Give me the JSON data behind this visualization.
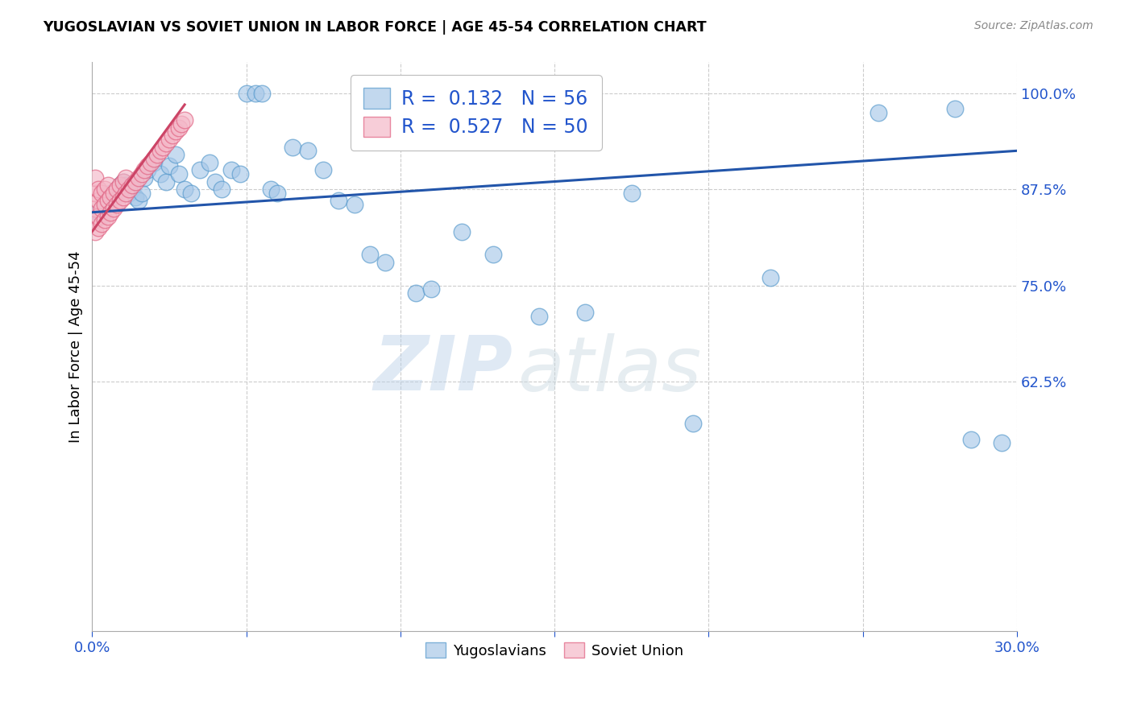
{
  "title": "YUGOSLAVIAN VS SOVIET UNION IN LABOR FORCE | AGE 45-54 CORRELATION CHART",
  "source": "Source: ZipAtlas.com",
  "ylabel": "In Labor Force | Age 45-54",
  "xlim": [
    0.0,
    0.3
  ],
  "ylim": [
    0.3,
    1.04
  ],
  "xticks": [
    0.0,
    0.05,
    0.1,
    0.15,
    0.2,
    0.25,
    0.3
  ],
  "xticklabels": [
    "0.0%",
    "",
    "",
    "",
    "",
    "",
    "30.0%"
  ],
  "yticks_right": [
    1.0,
    0.875,
    0.75,
    0.625
  ],
  "yticklabels_right": [
    "100.0%",
    "87.5%",
    "75.0%",
    "62.5%"
  ],
  "blue_color": "#a8c8e8",
  "blue_edge_color": "#5599cc",
  "pink_color": "#f4b8c8",
  "pink_edge_color": "#e06080",
  "blue_line_color": "#2255aa",
  "pink_line_color": "#cc4466",
  "blue_line_x": [
    0.0,
    0.3
  ],
  "blue_line_y": [
    0.845,
    0.925
  ],
  "pink_line_x": [
    0.0,
    0.03
  ],
  "pink_line_y": [
    0.82,
    0.985
  ],
  "blue_scatter_x": [
    0.002,
    0.003,
    0.004,
    0.005,
    0.006,
    0.007,
    0.008,
    0.009,
    0.01,
    0.011,
    0.012,
    0.013,
    0.014,
    0.015,
    0.016,
    0.017,
    0.018,
    0.02,
    0.022,
    0.024,
    0.025,
    0.027,
    0.028,
    0.03,
    0.032,
    0.035,
    0.038,
    0.04,
    0.042,
    0.045,
    0.048,
    0.05,
    0.053,
    0.055,
    0.058,
    0.06,
    0.065,
    0.07,
    0.075,
    0.08,
    0.085,
    0.09,
    0.095,
    0.105,
    0.11,
    0.12,
    0.13,
    0.145,
    0.16,
    0.175,
    0.195,
    0.22,
    0.255,
    0.28,
    0.285,
    0.295
  ],
  "blue_scatter_y": [
    0.845,
    0.84,
    0.86,
    0.855,
    0.87,
    0.865,
    0.875,
    0.88,
    0.885,
    0.88,
    0.87,
    0.875,
    0.865,
    0.86,
    0.87,
    0.89,
    0.9,
    0.91,
    0.895,
    0.885,
    0.905,
    0.92,
    0.895,
    0.875,
    0.87,
    0.9,
    0.91,
    0.885,
    0.875,
    0.9,
    0.895,
    1.0,
    1.0,
    1.0,
    0.875,
    0.87,
    0.93,
    0.925,
    0.9,
    0.86,
    0.855,
    0.79,
    0.78,
    0.74,
    0.745,
    0.82,
    0.79,
    0.71,
    0.715,
    0.87,
    0.57,
    0.76,
    0.975,
    0.98,
    0.55,
    0.545
  ],
  "pink_scatter_x": [
    0.001,
    0.001,
    0.001,
    0.001,
    0.001,
    0.002,
    0.002,
    0.002,
    0.002,
    0.003,
    0.003,
    0.003,
    0.004,
    0.004,
    0.004,
    0.005,
    0.005,
    0.005,
    0.006,
    0.006,
    0.007,
    0.007,
    0.008,
    0.008,
    0.009,
    0.009,
    0.01,
    0.01,
    0.011,
    0.011,
    0.012,
    0.013,
    0.014,
    0.015,
    0.016,
    0.017,
    0.018,
    0.019,
    0.02,
    0.021,
    0.022,
    0.023,
    0.024,
    0.025,
    0.026,
    0.027,
    0.028,
    0.029,
    0.03
  ],
  "pink_scatter_y": [
    0.82,
    0.835,
    0.85,
    0.87,
    0.89,
    0.825,
    0.84,
    0.86,
    0.875,
    0.83,
    0.85,
    0.87,
    0.835,
    0.855,
    0.875,
    0.84,
    0.86,
    0.88,
    0.845,
    0.865,
    0.85,
    0.87,
    0.855,
    0.875,
    0.86,
    0.88,
    0.865,
    0.885,
    0.87,
    0.89,
    0.875,
    0.88,
    0.885,
    0.89,
    0.895,
    0.9,
    0.905,
    0.91,
    0.915,
    0.92,
    0.925,
    0.93,
    0.935,
    0.94,
    0.945,
    0.95,
    0.955,
    0.96,
    0.965
  ],
  "watermark_zip": "ZIP",
  "watermark_atlas": "atlas",
  "background_color": "#ffffff",
  "grid_color": "#cccccc"
}
